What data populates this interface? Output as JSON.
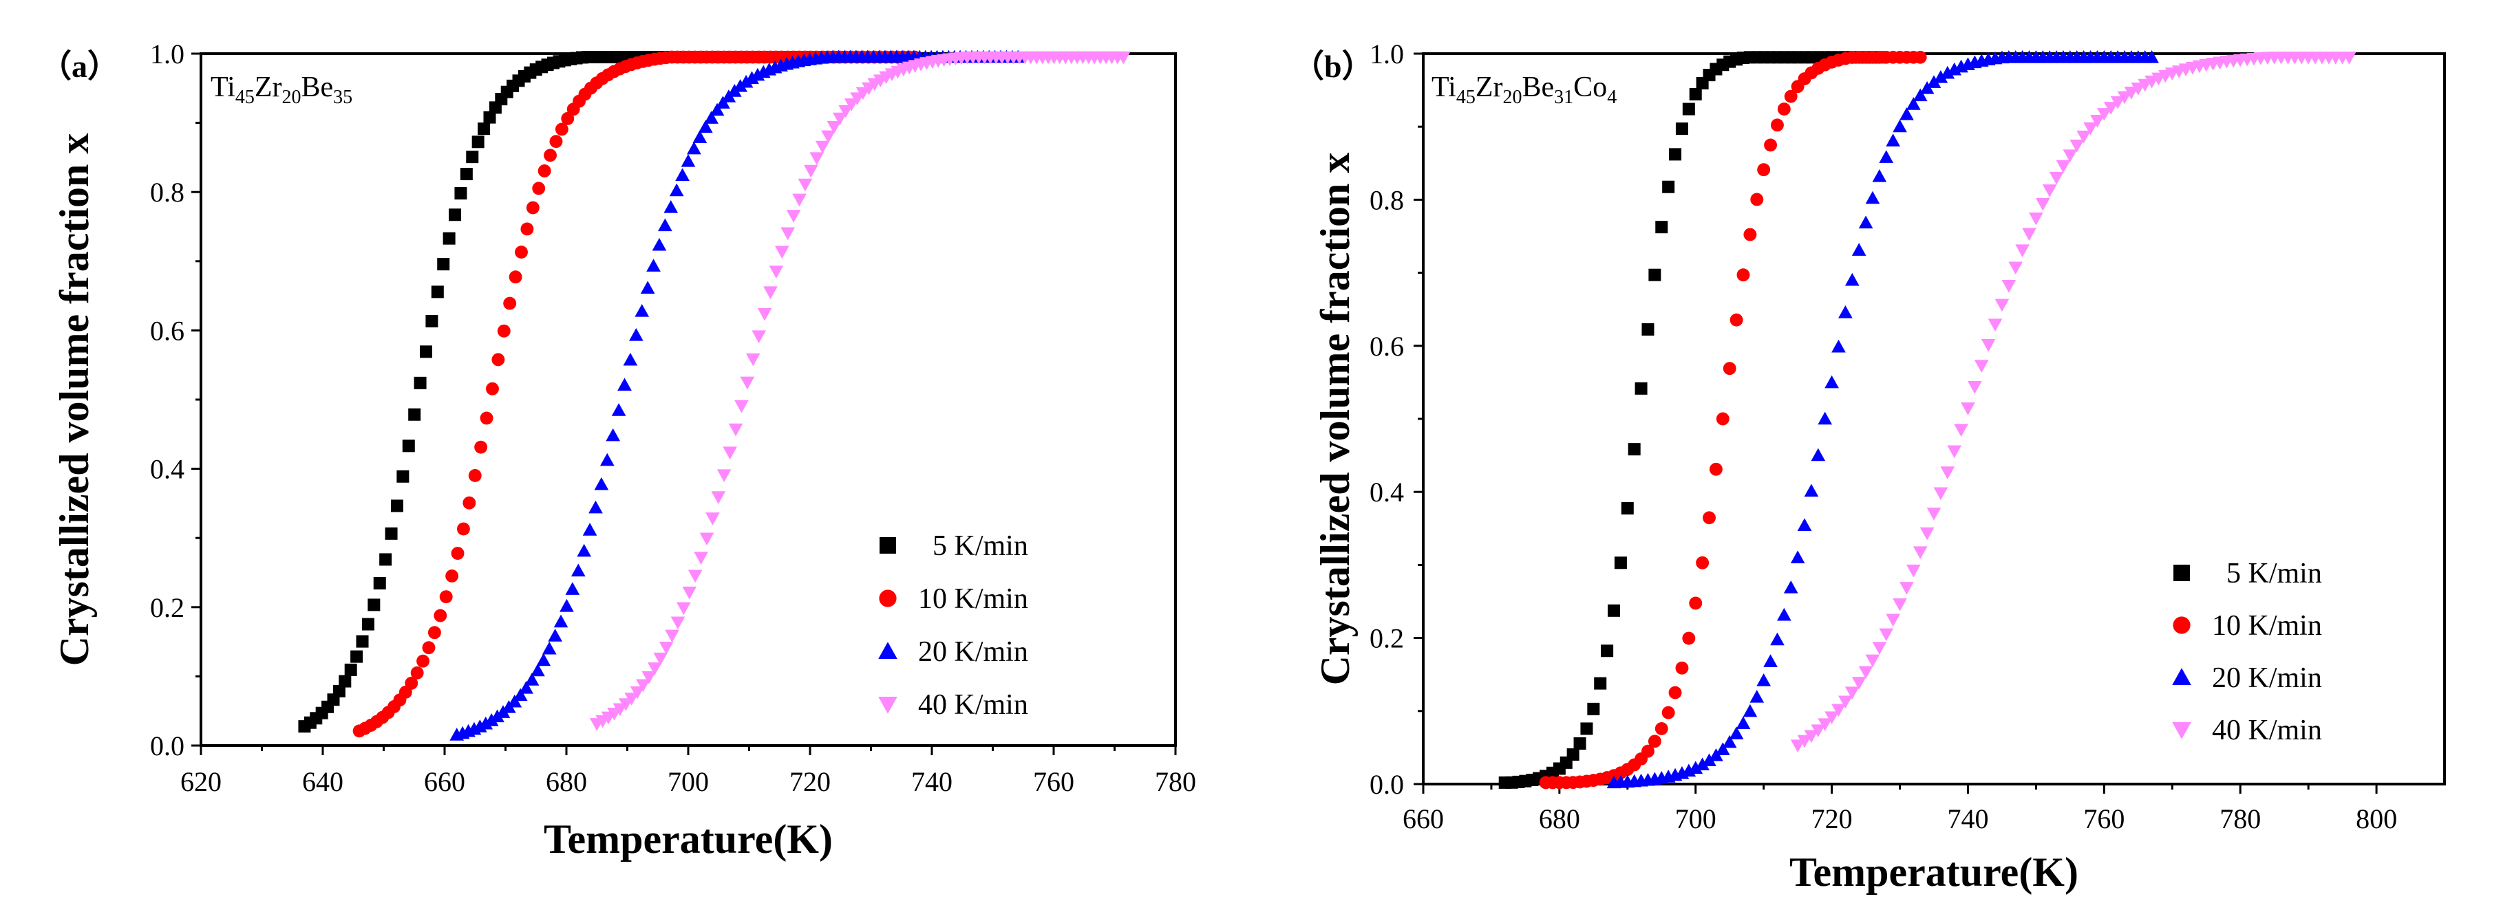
{
  "chart_data": [
    {
      "type": "scatter",
      "panel_label": "（a）",
      "alloy_label": {
        "base": [
          "Ti",
          "Zr",
          "Be"
        ],
        "subs": [
          "45",
          "20",
          "35"
        ]
      },
      "xlabel": "Temperature(K)",
      "ylabel": "Crystallized volume fraction x",
      "xlim": [
        620,
        780
      ],
      "ylim": [
        0,
        1.0
      ],
      "xticks": [
        "620",
        "640",
        "660",
        "680",
        "700",
        "720",
        "740",
        "760",
        "780"
      ],
      "yticks": [
        "0.0",
        "0.2",
        "0.4",
        "0.6",
        "0.8",
        "1.0"
      ],
      "legend_position": "bottom-right",
      "series": [
        {
          "name": "5 K/min",
          "marker": "square",
          "color": "#000000",
          "T0": 655.5,
          "w": 5.2,
          "xstart": 637,
          "xend": 725,
          "step": 0.95
        },
        {
          "name": "10 K/min",
          "marker": "circle",
          "color": "#ff0000",
          "T0": 667.5,
          "w": 5.6,
          "xstart": 646,
          "xend": 738,
          "step": 0.95
        },
        {
          "name": "20 K/min",
          "marker": "triangle-up",
          "color": "#0000ff",
          "T0": 689.0,
          "w": 6.5,
          "xstart": 662,
          "xend": 755,
          "step": 0.95
        },
        {
          "name": "40 K/min",
          "marker": "triangle-down",
          "color": "#ff88ff",
          "T0": 709.0,
          "w": 7.0,
          "xstart": 685,
          "xend": 772,
          "step": 0.95
        }
      ]
    },
    {
      "type": "scatter",
      "panel_label": "（b）",
      "alloy_label": {
        "base": [
          "Ti",
          "Zr",
          "Be",
          "Co"
        ],
        "subs": [
          "45",
          "20",
          "31",
          "4"
        ]
      },
      "xlabel": "Temperature(K)",
      "ylabel": "Crystallized volume fraction x",
      "xlim": [
        660,
        810
      ],
      "ylim": [
        0,
        1.0
      ],
      "xticks": [
        "660",
        "680",
        "700",
        "720",
        "740",
        "760",
        "780",
        "800"
      ],
      "yticks": [
        "0.0",
        "0.2",
        "0.4",
        "0.6",
        "0.8",
        "1.0"
      ],
      "legend_position": "bottom-right",
      "series": [
        {
          "name": "5 K/min",
          "marker": "square",
          "color": "#000000",
          "T0": 691.5,
          "w": 3.0,
          "xstart": 672,
          "xend": 727,
          "step": 1.0
        },
        {
          "name": "10 K/min",
          "marker": "circle",
          "color": "#ff0000",
          "T0": 704.0,
          "w": 3.6,
          "xstart": 678,
          "xend": 733,
          "step": 1.0
        },
        {
          "name": "20 K/min",
          "marker": "triangle-up",
          "color": "#0000ff",
          "T0": 719.0,
          "w": 5.0,
          "xstart": 688,
          "xend": 767,
          "step": 1.0
        },
        {
          "name": "40 K/min",
          "marker": "triangle-down",
          "color": "#ff88ff",
          "T0": 739.5,
          "w": 8.5,
          "xstart": 715,
          "xend": 796,
          "step": 1.0
        }
      ]
    }
  ]
}
